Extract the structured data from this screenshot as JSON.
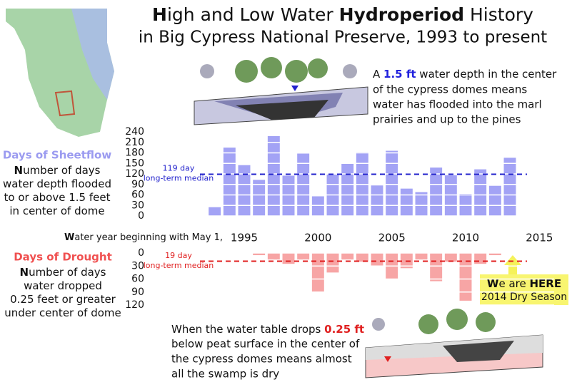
{
  "title": {
    "lines": [
      [
        "H",
        "igh and Low Water ",
        "Hydroperiod",
        " History"
      ],
      [
        "in Big Cypress National Preserve, 1993 to present"
      ]
    ]
  },
  "wet_note": [
    [
      "A ",
      "1.5 ft",
      " water depth in the center"
    ],
    [
      "of the cypress domes means"
    ],
    [
      "water has flooded into the marl"
    ],
    [
      "prairies and up to the pines"
    ]
  ],
  "dry_note": [
    [
      "When the water table drops ",
      "0.25 ft"
    ],
    [
      "below peat surface in the center of"
    ],
    [
      "the cypress domes means almost"
    ],
    [
      "all the swamp is dry"
    ]
  ],
  "callout": [
    [
      "W",
      "e are ",
      "HERE"
    ],
    [
      "2014 Dry Season"
    ]
  ],
  "chart_data": [
    {
      "type": "bar",
      "title": "Days of Sheetflow",
      "description": [
        [
          "N",
          "umber of days"
        ],
        [
          "water depth flooded"
        ],
        [
          "to or above 1.5 feet"
        ],
        [
          "in center of dome"
        ]
      ],
      "x_label": [
        "W",
        "ater year beginning with May 1,"
      ],
      "x": [
        1993,
        1994,
        1995,
        1996,
        1997,
        1998,
        1999,
        2000,
        2001,
        2002,
        2003,
        2004,
        2005,
        2006,
        2007,
        2008,
        2009,
        2010,
        2011,
        2012,
        2013
      ],
      "values": [
        25,
        195,
        145,
        103,
        228,
        115,
        178,
        56,
        118,
        150,
        182,
        87,
        186,
        78,
        68,
        138,
        116,
        63,
        133,
        86,
        166
      ],
      "color": "#a3a3f5",
      "xlim": [
        1992,
        2016
      ],
      "xticks": [
        1995,
        2000,
        2005,
        2010,
        2015
      ],
      "ylim": [
        0,
        240
      ],
      "yticks": [
        0,
        30,
        60,
        90,
        120,
        150,
        180,
        210,
        240
      ],
      "grid": true,
      "grid_color": "#ffffff",
      "median": {
        "value": 119,
        "label": [
          "119 day",
          "long-term median"
        ],
        "color": "#2222cc"
      }
    },
    {
      "type": "bar",
      "title": "Days of Drought",
      "description": [
        [
          "N",
          "umber of days"
        ],
        [
          "water dropped"
        ],
        [
          "0.25 feet or greater"
        ],
        [
          "under center of dome"
        ]
      ],
      "x": [
        1993,
        1994,
        1995,
        1996,
        1997,
        1998,
        1999,
        2000,
        2001,
        2002,
        2003,
        2004,
        2005,
        2006,
        2007,
        2008,
        2009,
        2010,
        2011,
        2012,
        2013
      ],
      "values": [
        0,
        0,
        0,
        5,
        15,
        25,
        15,
        90,
        45,
        15,
        20,
        30,
        60,
        35,
        15,
        65,
        20,
        110,
        25,
        5,
        0
      ],
      "color": "#f7a5a5",
      "xlim": [
        1992,
        2016
      ],
      "ylim": [
        120,
        0
      ],
      "yticks": [
        0,
        30,
        60,
        90,
        120
      ],
      "grid": true,
      "grid_color": "#ffffff",
      "median": {
        "value": 19,
        "label": [
          "19 day",
          "long-term median"
        ],
        "color": "#e02020"
      }
    }
  ]
}
